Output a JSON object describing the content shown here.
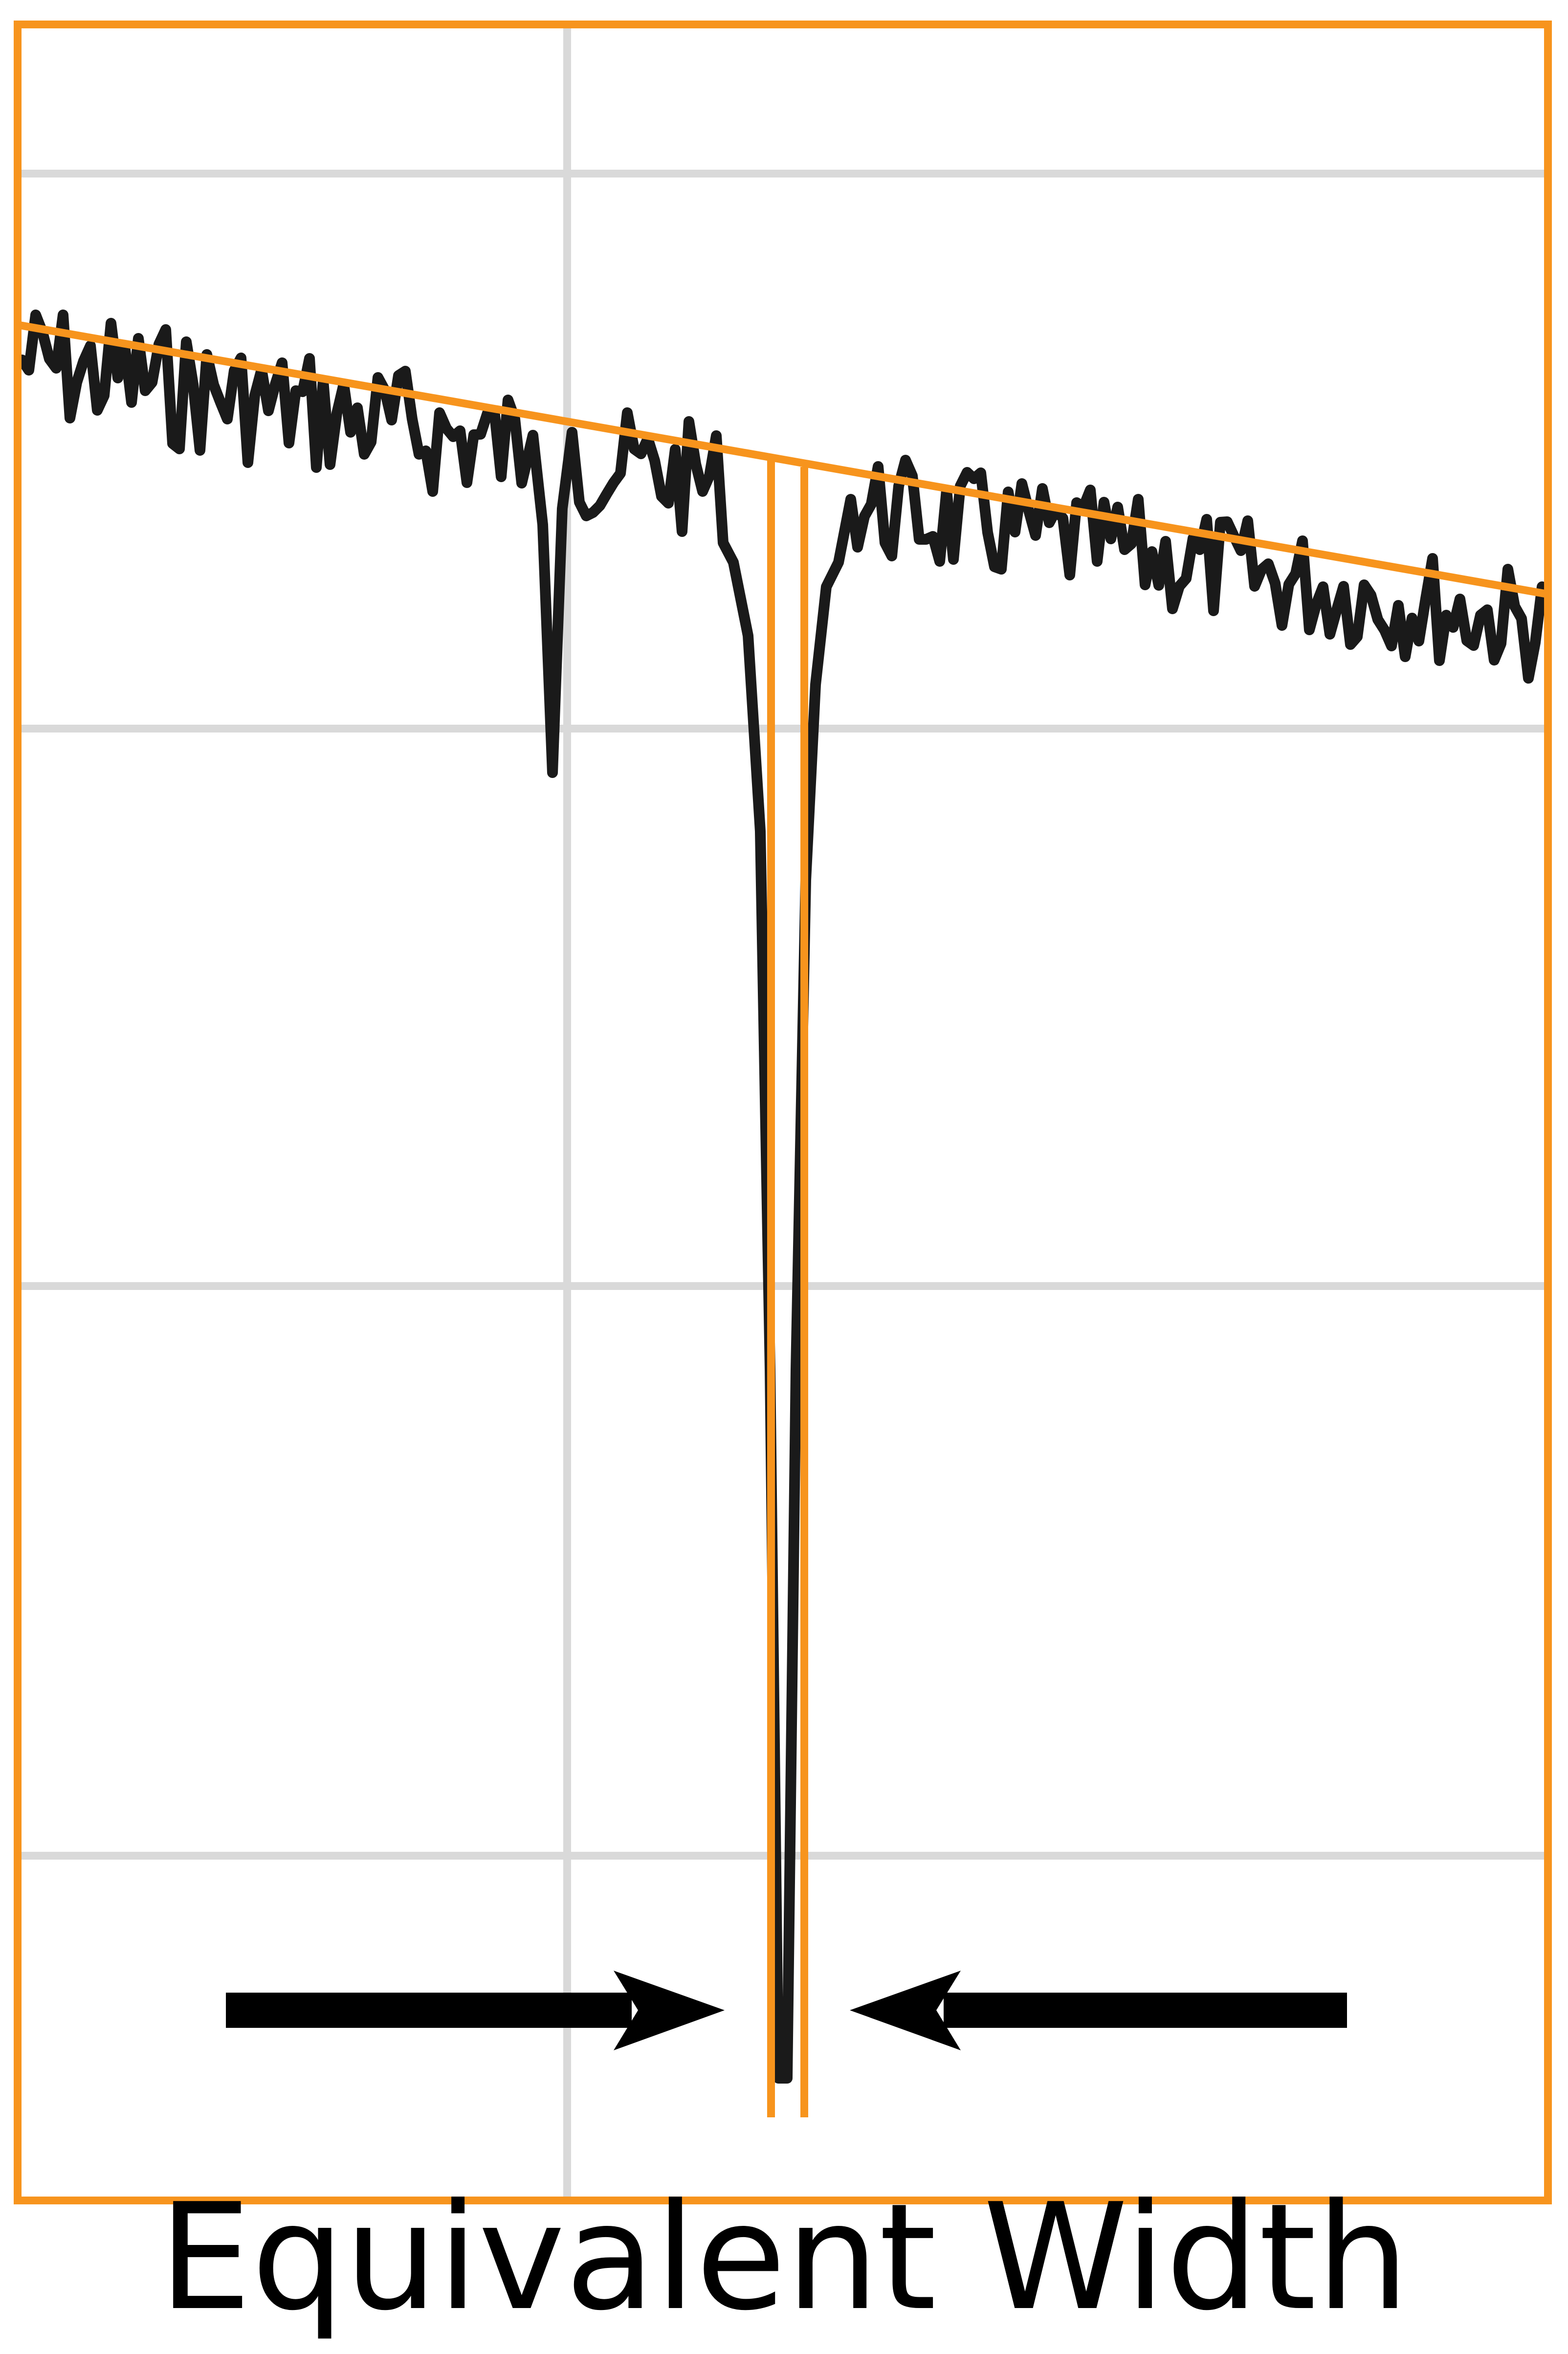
{
  "caption": "Equivalent Width",
  "colors": {
    "frame": "#f7941d",
    "continuum": "#f7941d",
    "band_edges": "#f7941d",
    "spectrum": "#1a1a1a",
    "grid": "#d9d9d9",
    "arrows": "#000000",
    "background": "#ffffff"
  },
  "elements": {
    "spectrum": "absorption-spectrum-trace",
    "continuum": "continuum-fit-line",
    "equivalent_width_band": "equivalent-width-rectangle",
    "arrows": "pointing-inward"
  }
}
